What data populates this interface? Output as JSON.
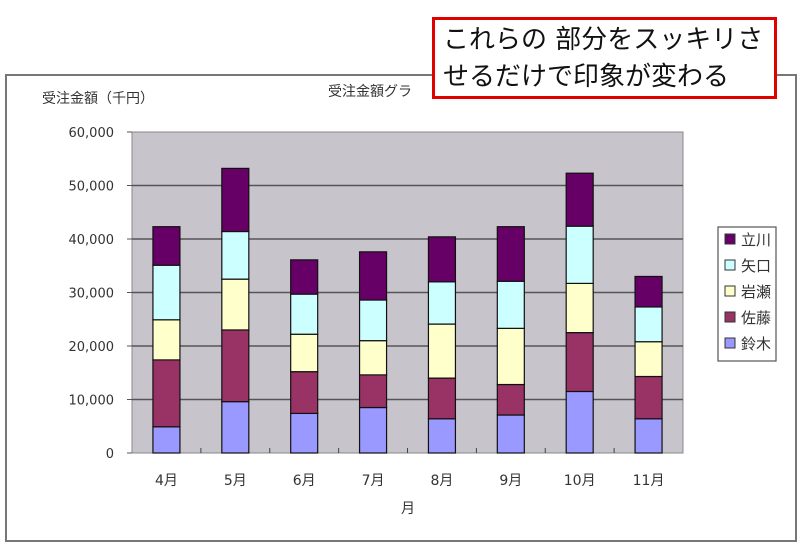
{
  "chart_data": {
    "type": "bar",
    "stacked": true,
    "title": "受注金額グラ",
    "ylabel": "受注金額（千円）",
    "xlabel": "月",
    "categories": [
      "4月",
      "5月",
      "6月",
      "7月",
      "8月",
      "9月",
      "10月",
      "11月"
    ],
    "ylim": [
      0,
      60000
    ],
    "yticks": [
      0,
      10000,
      20000,
      30000,
      40000,
      50000,
      60000
    ],
    "ytick_labels": [
      "0",
      "10,000",
      "20,000",
      "30,000",
      "40,000",
      "50,000",
      "60,000"
    ],
    "grid": true,
    "legend_position": "right",
    "plot_background": "#c8c4cc",
    "series": [
      {
        "name": "鈴木",
        "color": "#9999ff",
        "values": [
          4900,
          9600,
          7400,
          8500,
          6400,
          7100,
          11500,
          6400
        ]
      },
      {
        "name": "佐藤",
        "color": "#993366",
        "values": [
          12500,
          13400,
          7800,
          6100,
          7600,
          5700,
          11000,
          7900
        ]
      },
      {
        "name": "岩瀬",
        "color": "#ffffcc",
        "values": [
          7500,
          9500,
          7000,
          6400,
          10100,
          10500,
          9200,
          6500
        ]
      },
      {
        "name": "矢口",
        "color": "#ccffff",
        "values": [
          10200,
          8900,
          7500,
          7600,
          7900,
          8800,
          10700,
          6500
        ]
      },
      {
        "name": "立川",
        "color": "#660066",
        "values": [
          7200,
          11800,
          6400,
          9000,
          8400,
          10200,
          9900,
          5700
        ]
      }
    ]
  },
  "callout": {
    "lines": [
      "これらの 部分をスッキリさ",
      "せるだけで印象が変わる"
    ],
    "border_color": "#e00000"
  }
}
